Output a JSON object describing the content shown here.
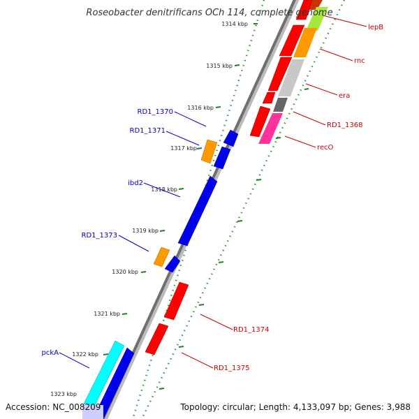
{
  "map": {
    "title": "Roseobacter denitrificans OCh 114, complete genome",
    "accession": "Accession: NC_008209",
    "topology": "Topology: circular; Length: 4,133,097 bp; Genes: 3,988"
  },
  "ticks": [
    "1314 kbp",
    "1315 kbp",
    "1316 kbp",
    "1317 kbp",
    "1318 kbp",
    "1319 kbp",
    "1320 kbp",
    "1321 kbp",
    "1322 kbp",
    "1323 kbp"
  ],
  "genes": [
    {
      "label": "lepB",
      "color": "#cc0000"
    },
    {
      "label": "rnc",
      "color": "#cc0000"
    },
    {
      "label": "era",
      "color": "#cc0000"
    },
    {
      "label": "RD1_1368",
      "color": "#cc0000"
    },
    {
      "label": "recO",
      "color": "#cc0000"
    },
    {
      "label": "RD1_1370",
      "color": "#0000cc"
    },
    {
      "label": "RD1_1371",
      "color": "#0000cc"
    },
    {
      "label": "ibd2",
      "color": "#0000cc"
    },
    {
      "label": "RD1_1373",
      "color": "#0000cc"
    },
    {
      "label": "RD1_1374",
      "color": "#cc0000"
    },
    {
      "label": "RD1_1375",
      "color": "#cc0000"
    },
    {
      "label": "pckA",
      "color": "#0000cc"
    }
  ],
  "colors": {
    "cds_forward": "#ff0000",
    "cds_reverse": "#0000ff",
    "gc_skew_green": "#a6e83c",
    "orange": "#ff9900",
    "grey": "#c8c8c8",
    "dark_grey": "#666666",
    "pink": "#ff3399",
    "cyan": "#00ffff",
    "backbone": "#888888",
    "tick_dots": "#339933"
  }
}
